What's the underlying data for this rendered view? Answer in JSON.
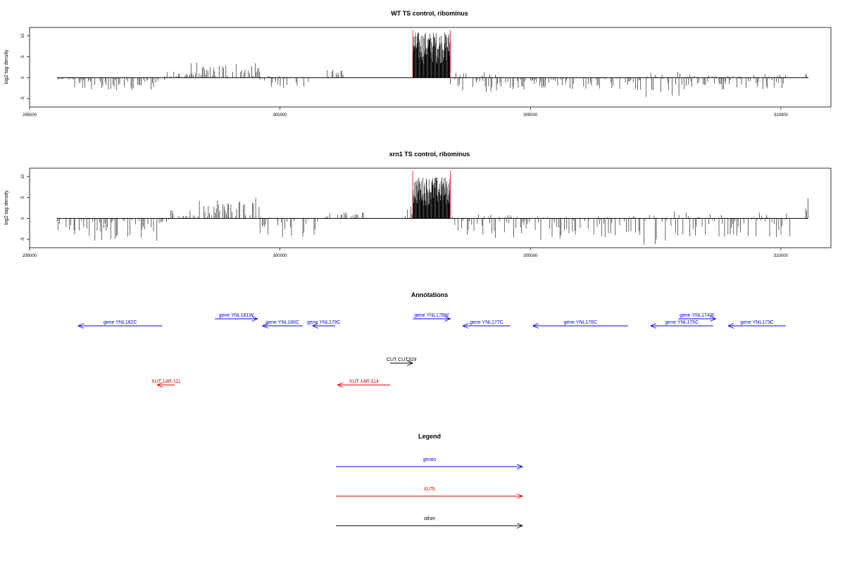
{
  "colors": {
    "gene": "#0000ff",
    "xut": "#cc0000",
    "other": "#000000",
    "highlight": "#ff3333"
  },
  "chart_data": [
    {
      "type": "bar",
      "title": "WT TS control, ribominus",
      "ylabel": "log2 tag density",
      "xlim": [
        295000,
        311000
      ],
      "ylim": [
        -7,
        12
      ],
      "x_ticks": [
        "295000",
        "300000",
        "305000",
        "310000"
      ],
      "y_ticks": [
        "-5",
        "0",
        "5",
        "10"
      ],
      "highlight_region": [
        302650,
        303400
      ],
      "baseline_range": [
        295550,
        310550
      ],
      "density_profile": [
        {
          "x_start": 295550,
          "x_end": 295900,
          "min": -0.5,
          "max": 0
        },
        {
          "x_start": 295900,
          "x_end": 297600,
          "min": -3,
          "max": 0
        },
        {
          "x_start": 296300,
          "x_end": 296320,
          "min": -5.8,
          "max": 0
        },
        {
          "x_start": 297600,
          "x_end": 297700,
          "min": -1,
          "max": 0
        },
        {
          "x_start": 297700,
          "x_end": 298200,
          "min": 0,
          "max": 1.5
        },
        {
          "x_start": 298200,
          "x_end": 299600,
          "min": 0,
          "max": 3.8
        },
        {
          "x_start": 299600,
          "x_end": 300600,
          "min": -3,
          "max": 0.5
        },
        {
          "x_start": 300900,
          "x_end": 301300,
          "min": 0,
          "max": 2
        },
        {
          "x_start": 302650,
          "x_end": 303400,
          "min": 0,
          "max": 11
        },
        {
          "x_start": 303400,
          "x_end": 304600,
          "min": -3.5,
          "max": 1.5
        },
        {
          "x_start": 304600,
          "x_end": 307200,
          "min": -3,
          "max": 0
        },
        {
          "x_start": 307200,
          "x_end": 308000,
          "min": -5,
          "max": 1.5
        },
        {
          "x_start": 308000,
          "x_end": 310200,
          "min": -3,
          "max": 1
        },
        {
          "x_start": 310450,
          "x_end": 310550,
          "min": 0,
          "max": 2.5
        }
      ]
    },
    {
      "type": "bar",
      "title": "xrn1 TS control, ribominus",
      "ylabel": "log2 tag density",
      "xlim": [
        295000,
        311000
      ],
      "ylim": [
        -7,
        12
      ],
      "x_ticks": [
        "295000",
        "300000",
        "305000",
        "310000"
      ],
      "y_ticks": [
        "-5",
        "0",
        "5",
        "10"
      ],
      "highlight_region": [
        302650,
        303400
      ],
      "baseline_range": [
        295550,
        310550
      ],
      "density_profile": [
        {
          "x_start": 295550,
          "x_end": 295900,
          "min": -3,
          "max": 0
        },
        {
          "x_start": 295900,
          "x_end": 297600,
          "min": -5.5,
          "max": 0
        },
        {
          "x_start": 296300,
          "x_end": 296320,
          "min": -6.5,
          "max": 0
        },
        {
          "x_start": 297600,
          "x_end": 297800,
          "min": -1,
          "max": 0
        },
        {
          "x_start": 297800,
          "x_end": 298300,
          "min": 0,
          "max": 2
        },
        {
          "x_start": 298300,
          "x_end": 299600,
          "min": 0,
          "max": 5
        },
        {
          "x_start": 299600,
          "x_end": 300800,
          "min": -4.5,
          "max": 0.5
        },
        {
          "x_start": 300900,
          "x_end": 301700,
          "min": 0,
          "max": 1.5
        },
        {
          "x_start": 302500,
          "x_end": 302650,
          "min": 0,
          "max": 3
        },
        {
          "x_start": 302650,
          "x_end": 303400,
          "min": 0,
          "max": 10
        },
        {
          "x_start": 303400,
          "x_end": 304600,
          "min": -6,
          "max": 1
        },
        {
          "x_start": 304600,
          "x_end": 307200,
          "min": -5.5,
          "max": 0.5
        },
        {
          "x_start": 307200,
          "x_end": 308000,
          "min": -6.5,
          "max": 2
        },
        {
          "x_start": 308000,
          "x_end": 310200,
          "min": -4.5,
          "max": 1.5
        },
        {
          "x_start": 310450,
          "x_end": 310550,
          "min": 0,
          "max": 5
        }
      ]
    }
  ],
  "annotations": {
    "title": "Annotations",
    "items": [
      {
        "label": "gene YNL182C",
        "type": "gene",
        "start": 297650,
        "end": 295970,
        "row": 0
      },
      {
        "label": "gene YNL181W",
        "type": "gene",
        "start": 298700,
        "end": 299550,
        "row": 1
      },
      {
        "label": "gene YNL180C",
        "type": "gene",
        "start": 300450,
        "end": 299650,
        "row": 0
      },
      {
        "label": "gene YNL179C",
        "type": "gene",
        "start": 301100,
        "end": 300650,
        "row": 0
      },
      {
        "label": "gene YNL178W",
        "type": "gene",
        "start": 302650,
        "end": 303400,
        "row": 1
      },
      {
        "label": "gene YNL177C",
        "type": "gene",
        "start": 304600,
        "end": 303650,
        "row": 0
      },
      {
        "label": "gene YNL176C",
        "type": "gene",
        "start": 306950,
        "end": 305050,
        "row": 0
      },
      {
        "label": "gene YNL175C",
        "type": "gene",
        "start": 308650,
        "end": 307400,
        "row": 0
      },
      {
        "label": "gene YNL174W",
        "type": "gene",
        "start": 307950,
        "end": 308700,
        "row": 1
      },
      {
        "label": "gene YNL173C",
        "type": "gene",
        "start": 310100,
        "end": 308950,
        "row": 0
      },
      {
        "label": "CUT CUT329",
        "type": "other",
        "start": 302200,
        "end": 302650,
        "row": 3
      },
      {
        "label": "XUT 14R-111",
        "type": "xut",
        "start": 297900,
        "end": 297550,
        "row": 4
      },
      {
        "label": "XUT 14R-114",
        "type": "xut",
        "start": 302200,
        "end": 301150,
        "row": 4
      }
    ]
  },
  "legend": {
    "title": "Legend",
    "items": [
      {
        "label": "genes",
        "type": "gene"
      },
      {
        "label": "XUTs",
        "type": "xut"
      },
      {
        "label": "other",
        "type": "other"
      }
    ]
  }
}
